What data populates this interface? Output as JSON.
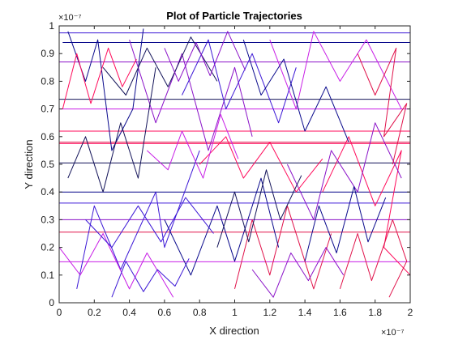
{
  "chart_data": {
    "type": "line",
    "title": "Plot of Particle Trajectories",
    "xlabel": "X direction",
    "ylabel": "Y direction",
    "x_exponent": "×10⁻⁷",
    "y_exponent": "×10⁻⁷",
    "xlim": [
      0,
      2
    ],
    "ylim": [
      0,
      1
    ],
    "xticks": [
      "0",
      "0.2",
      "0.4",
      "0.6",
      "0.8",
      "1",
      "1.2",
      "1.4",
      "1.6",
      "1.8",
      "2"
    ],
    "yticks": [
      "0",
      "0.1",
      "0.2",
      "0.3",
      "0.4",
      "0.5",
      "0.6",
      "0.7",
      "0.8",
      "0.9",
      "1"
    ],
    "grid": false,
    "colors": [
      "#0a0a8c",
      "#3c18d6",
      "#8a12c8",
      "#c81ee6",
      "#e0124a",
      "#ff0a5a",
      "#14145a"
    ],
    "series": [
      {
        "values": [
          [
            0.02,
            0.94
          ],
          [
            2.0,
            0.94
          ]
        ]
      },
      {
        "values": [
          [
            0.0,
            0.975
          ],
          [
            2.0,
            0.975
          ]
        ]
      },
      {
        "values": [
          [
            0.0,
            0.87
          ],
          [
            2.0,
            0.87
          ]
        ]
      },
      {
        "values": [
          [
            0.0,
            0.7
          ],
          [
            2.0,
            0.7
          ]
        ]
      },
      {
        "values": [
          [
            0.0,
            0.58
          ],
          [
            2.0,
            0.58
          ]
        ]
      },
      {
        "values": [
          [
            0.0,
            0.575
          ],
          [
            2.0,
            0.575
          ]
        ]
      },
      {
        "values": [
          [
            0.0,
            0.505
          ],
          [
            2.0,
            0.505
          ]
        ]
      },
      {
        "values": [
          [
            0.0,
            0.4
          ],
          [
            2.0,
            0.4
          ]
        ]
      },
      {
        "values": [
          [
            0.0,
            0.36
          ],
          [
            2.0,
            0.36
          ]
        ]
      },
      {
        "values": [
          [
            0.0,
            0.3
          ],
          [
            2.0,
            0.3
          ]
        ]
      },
      {
        "values": [
          [
            0.0,
            0.148
          ],
          [
            2.0,
            0.148
          ]
        ]
      },
      {
        "values": [
          [
            0.0,
            0.255
          ],
          [
            2.0,
            0.255
          ]
        ]
      },
      {
        "values": [
          [
            0.0,
            0.62
          ],
          [
            2.0,
            0.62
          ]
        ]
      },
      {
        "values": [
          [
            0.0,
            0.735
          ],
          [
            2.0,
            0.735
          ]
        ]
      },
      {
        "values": [
          [
            0.05,
            0.98
          ],
          [
            0.15,
            0.8
          ],
          [
            0.22,
            0.95
          ],
          [
            0.3,
            0.55
          ],
          [
            0.42,
            0.7
          ],
          [
            0.48,
            0.99
          ]
        ]
      },
      {
        "values": [
          [
            0.1,
            0.05
          ],
          [
            0.2,
            0.35
          ],
          [
            0.35,
            0.12
          ],
          [
            0.55,
            0.4
          ],
          [
            0.6,
            0.2
          ],
          [
            0.8,
            0.55
          ]
        ]
      },
      {
        "values": [
          [
            0.4,
            0.95
          ],
          [
            0.55,
            0.65
          ],
          [
            0.7,
            0.9
          ],
          [
            0.85,
            0.55
          ],
          [
            1.0,
            0.85
          ],
          [
            1.1,
            0.6
          ]
        ]
      },
      {
        "values": [
          [
            1.2,
            0.95
          ],
          [
            1.35,
            0.7
          ],
          [
            1.45,
            0.98
          ],
          [
            1.6,
            0.8
          ],
          [
            1.75,
            0.95
          ],
          [
            1.95,
            0.7
          ]
        ]
      },
      {
        "values": [
          [
            1.0,
            0.05
          ],
          [
            1.1,
            0.3
          ],
          [
            1.2,
            0.1
          ],
          [
            1.3,
            0.35
          ],
          [
            1.45,
            0.05
          ],
          [
            1.55,
            0.25
          ]
        ]
      },
      {
        "values": [
          [
            1.5,
            0.4
          ],
          [
            1.65,
            0.6
          ],
          [
            1.8,
            0.35
          ],
          [
            1.95,
            0.55
          ],
          [
            1.85,
            0.2
          ],
          [
            2.0,
            0.1
          ]
        ]
      },
      {
        "values": [
          [
            0.05,
            0.45
          ],
          [
            0.15,
            0.6
          ],
          [
            0.25,
            0.4
          ],
          [
            0.35,
            0.65
          ],
          [
            0.45,
            0.45
          ],
          [
            0.55,
            0.85
          ]
        ]
      },
      {
        "values": [
          [
            0.6,
            0.3
          ],
          [
            0.75,
            0.1
          ],
          [
            0.9,
            0.35
          ],
          [
            1.0,
            0.15
          ],
          [
            1.15,
            0.45
          ],
          [
            1.25,
            0.2
          ]
        ]
      },
      {
        "values": [
          [
            0.7,
            0.75
          ],
          [
            0.85,
            0.95
          ],
          [
            0.95,
            0.7
          ],
          [
            1.1,
            0.9
          ],
          [
            1.25,
            0.65
          ],
          [
            1.35,
            0.85
          ]
        ]
      },
      {
        "values": [
          [
            1.3,
            0.5
          ],
          [
            1.45,
            0.3
          ],
          [
            1.55,
            0.55
          ],
          [
            1.7,
            0.4
          ],
          [
            1.8,
            0.65
          ],
          [
            1.95,
            0.45
          ]
        ]
      },
      {
        "values": [
          [
            0.0,
            0.2
          ],
          [
            0.12,
            0.1
          ],
          [
            0.25,
            0.25
          ],
          [
            0.4,
            0.05
          ],
          [
            0.5,
            0.18
          ],
          [
            0.65,
            0.02
          ]
        ]
      },
      {
        "values": [
          [
            1.6,
            0.05
          ],
          [
            1.7,
            0.25
          ],
          [
            1.78,
            0.08
          ],
          [
            1.9,
            0.3
          ],
          [
            1.98,
            0.15
          ],
          [
            1.88,
            0.02
          ]
        ]
      },
      {
        "values": [
          [
            0.8,
            0.5
          ],
          [
            0.95,
            0.6
          ],
          [
            1.05,
            0.45
          ],
          [
            1.2,
            0.58
          ],
          [
            1.35,
            0.4
          ],
          [
            1.5,
            0.52
          ]
        ]
      },
      {
        "values": [
          [
            0.25,
            0.85
          ],
          [
            0.38,
            0.75
          ],
          [
            0.5,
            0.92
          ],
          [
            0.62,
            0.78
          ],
          [
            0.75,
            0.96
          ],
          [
            0.9,
            0.8
          ]
        ]
      },
      {
        "values": [
          [
            1.05,
            0.95
          ],
          [
            1.15,
            0.75
          ],
          [
            1.28,
            0.88
          ],
          [
            1.4,
            0.62
          ],
          [
            1.52,
            0.78
          ],
          [
            1.65,
            0.58
          ]
        ]
      },
      {
        "values": [
          [
            0.15,
            0.3
          ],
          [
            0.3,
            0.2
          ],
          [
            0.45,
            0.35
          ],
          [
            0.58,
            0.22
          ],
          [
            0.72,
            0.38
          ],
          [
            0.88,
            0.25
          ]
        ]
      },
      {
        "values": [
          [
            1.1,
            0.12
          ],
          [
            1.22,
            0.02
          ],
          [
            1.32,
            0.18
          ],
          [
            1.42,
            0.08
          ],
          [
            1.52,
            0.2
          ],
          [
            1.62,
            0.1
          ]
        ]
      },
      {
        "values": [
          [
            0.5,
            0.55
          ],
          [
            0.62,
            0.48
          ],
          [
            0.7,
            0.62
          ],
          [
            0.82,
            0.45
          ],
          [
            0.92,
            0.68
          ],
          [
            1.02,
            0.52
          ]
        ]
      },
      {
        "values": [
          [
            1.7,
            0.9
          ],
          [
            1.8,
            0.75
          ],
          [
            1.92,
            0.92
          ],
          [
            1.85,
            0.6
          ],
          [
            1.98,
            0.72
          ],
          [
            1.9,
            0.5
          ]
        ]
      },
      {
        "values": [
          [
            0.02,
            0.7
          ],
          [
            0.1,
            0.9
          ],
          [
            0.18,
            0.72
          ],
          [
            0.28,
            0.92
          ],
          [
            0.36,
            0.78
          ],
          [
            0.44,
            0.88
          ]
        ]
      },
      {
        "values": [
          [
            0.9,
            0.2
          ],
          [
            1.0,
            0.4
          ],
          [
            1.08,
            0.22
          ],
          [
            1.18,
            0.48
          ],
          [
            1.26,
            0.3
          ],
          [
            1.38,
            0.46
          ]
        ]
      },
      {
        "values": [
          [
            1.4,
            0.15
          ],
          [
            1.48,
            0.35
          ],
          [
            1.58,
            0.18
          ],
          [
            1.68,
            0.42
          ],
          [
            1.76,
            0.22
          ],
          [
            1.86,
            0.38
          ]
        ]
      },
      {
        "values": [
          [
            0.3,
            0.02
          ],
          [
            0.38,
            0.15
          ],
          [
            0.48,
            0.04
          ],
          [
            0.56,
            0.12
          ],
          [
            0.66,
            0.06
          ],
          [
            0.74,
            0.16
          ]
        ]
      },
      {
        "values": [
          [
            0.6,
            0.92
          ],
          [
            0.68,
            0.8
          ],
          [
            0.78,
            0.94
          ],
          [
            0.86,
            0.82
          ],
          [
            0.96,
            0.98
          ],
          [
            1.06,
            0.84
          ]
        ]
      }
    ]
  }
}
